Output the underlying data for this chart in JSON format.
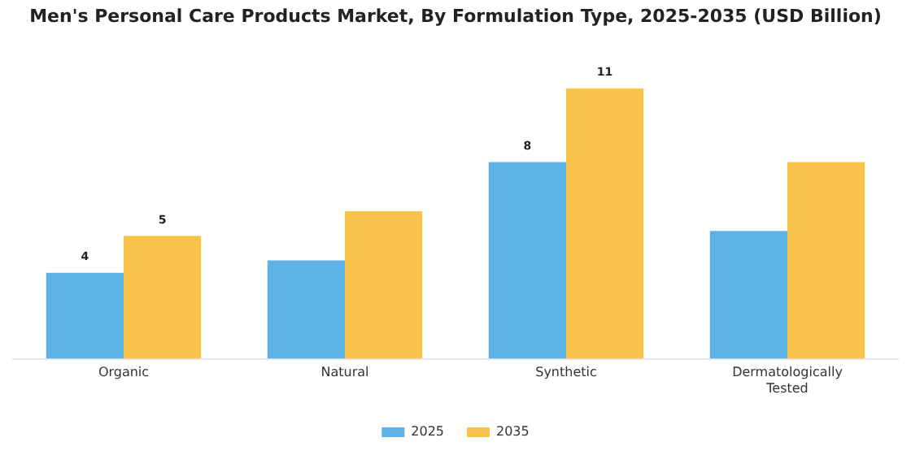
{
  "chart_data": {
    "type": "bar",
    "title": "Men's Personal Care Products Market, By Formulation Type, 2025-2035 (USD Billion)",
    "categories": [
      "Organic",
      "Natural",
      "Synthetic",
      "Dermatologically Tested"
    ],
    "series": [
      {
        "name": "2025",
        "color": "#5eb2e6",
        "values": [
          3.5,
          4.0,
          8,
          5.2
        ],
        "value_labels": [
          "4",
          null,
          "8",
          null
        ]
      },
      {
        "name": "2035",
        "color": "#f7c34a",
        "values": [
          5,
          6.0,
          11,
          8.0
        ],
        "value_labels": [
          "5",
          null,
          "11",
          null
        ]
      }
    ],
    "grid": false,
    "legend": "bottom"
  }
}
